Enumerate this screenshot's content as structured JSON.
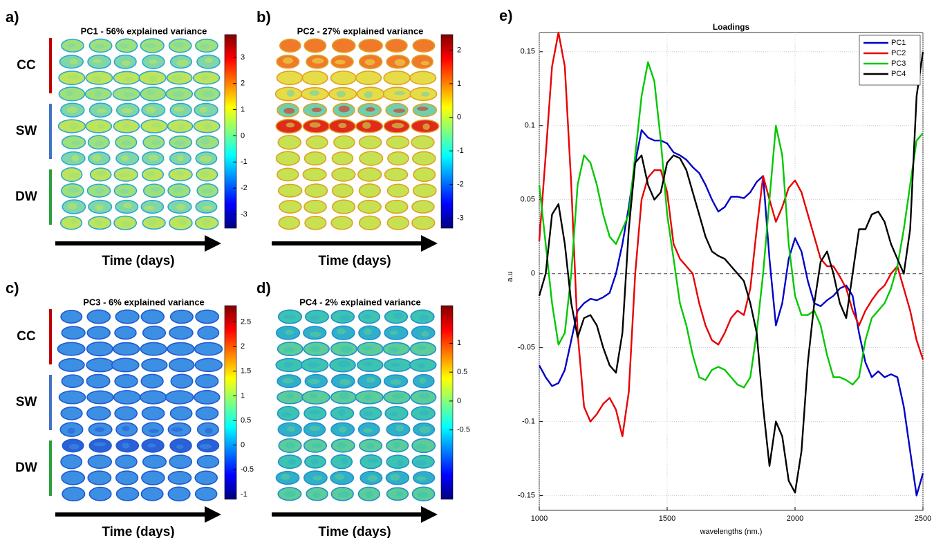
{
  "panels": [
    {
      "label": "a)",
      "title": "PC1 - 56% explained variance",
      "clim": [
        -3.53,
        3.87
      ],
      "cticks": [
        -3,
        -2,
        -1,
        0,
        1,
        2,
        3
      ],
      "groups": [
        "CC",
        "SW",
        "DW"
      ],
      "xlabel": "Time (days)"
    },
    {
      "label": "b)",
      "title": "PC2 - 27% explained variance",
      "clim": [
        -3.3,
        2.46
      ],
      "cticks": [
        -3,
        -2,
        -1,
        0,
        1,
        2
      ],
      "xlabel": "Time (days)"
    },
    {
      "label": "c)",
      "title": "PC3 - 6% explained variance",
      "clim": [
        -1.1,
        2.83
      ],
      "cticks": [
        -1,
        -0.5,
        0,
        0.5,
        1,
        1.5,
        2,
        2.5
      ],
      "groups": [
        "CC",
        "SW",
        "DW"
      ],
      "xlabel": "Time (days)"
    },
    {
      "label": "d)",
      "title": "PC4 - 2% explained variance",
      "clim": [
        -1.7,
        1.65
      ],
      "cticks": [
        -0.5,
        0,
        0.5,
        1
      ],
      "xlabel": "Time (days)"
    }
  ],
  "chart_data": {
    "type": "line",
    "label": "e)",
    "title": "Loadings",
    "xlabel": "wavelengths (nm.)",
    "ylabel": "a.u",
    "x": [
      1000,
      1025,
      1050,
      1075,
      1100,
      1125,
      1150,
      1175,
      1200,
      1225,
      1250,
      1275,
      1300,
      1325,
      1350,
      1375,
      1400,
      1425,
      1450,
      1475,
      1500,
      1525,
      1550,
      1575,
      1600,
      1625,
      1650,
      1675,
      1700,
      1725,
      1750,
      1775,
      1800,
      1825,
      1850,
      1875,
      1900,
      1925,
      1950,
      1975,
      2000,
      2025,
      2050,
      2075,
      2100,
      2125,
      2150,
      2175,
      2200,
      2225,
      2250,
      2275,
      2300,
      2325,
      2350,
      2375,
      2400,
      2425,
      2450,
      2475,
      2500
    ],
    "series": [
      {
        "name": "PC1",
        "color": "#0000c8",
        "values": [
          -0.062,
          -0.07,
          -0.076,
          -0.074,
          -0.065,
          -0.045,
          -0.025,
          -0.02,
          -0.017,
          -0.018,
          -0.016,
          -0.013,
          0.0,
          0.02,
          0.045,
          0.075,
          0.097,
          0.092,
          0.09,
          0.09,
          0.088,
          0.082,
          0.08,
          0.077,
          0.072,
          0.068,
          0.06,
          0.05,
          0.042,
          0.045,
          0.052,
          0.052,
          0.051,
          0.055,
          0.062,
          0.066,
          0.01,
          -0.035,
          -0.02,
          0.01,
          0.024,
          0.015,
          -0.005,
          -0.02,
          -0.022,
          -0.018,
          -0.015,
          -0.01,
          -0.008,
          -0.015,
          -0.04,
          -0.06,
          -0.07,
          -0.066,
          -0.07,
          -0.068,
          -0.07,
          -0.09,
          -0.12,
          -0.15,
          -0.135
        ]
      },
      {
        "name": "PC2",
        "color": "#e80000",
        "values": [
          0.022,
          0.08,
          0.14,
          0.163,
          0.14,
          0.06,
          -0.04,
          -0.09,
          -0.1,
          -0.095,
          -0.088,
          -0.084,
          -0.092,
          -0.11,
          -0.08,
          0.0,
          0.05,
          0.065,
          0.07,
          0.07,
          0.055,
          0.02,
          0.01,
          0.005,
          0.0,
          -0.02,
          -0.035,
          -0.045,
          -0.048,
          -0.04,
          -0.03,
          -0.025,
          -0.028,
          -0.01,
          0.03,
          0.066,
          0.05,
          0.035,
          0.045,
          0.058,
          0.063,
          0.055,
          0.04,
          0.025,
          0.01,
          0.005,
          0.005,
          -0.002,
          -0.01,
          -0.025,
          -0.035,
          -0.025,
          -0.018,
          -0.012,
          -0.008,
          0.0,
          0.005,
          -0.01,
          -0.025,
          -0.045,
          -0.058
        ]
      },
      {
        "name": "PC3",
        "color": "#00c800",
        "values": [
          0.06,
          0.02,
          -0.02,
          -0.048,
          -0.04,
          0.0,
          0.06,
          0.08,
          0.075,
          0.06,
          0.04,
          0.025,
          0.02,
          0.03,
          0.04,
          0.08,
          0.12,
          0.143,
          0.13,
          0.09,
          0.04,
          0.01,
          -0.02,
          -0.035,
          -0.055,
          -0.07,
          -0.072,
          -0.065,
          -0.063,
          -0.065,
          -0.07,
          -0.075,
          -0.077,
          -0.07,
          -0.04,
          0.0,
          0.05,
          0.1,
          0.08,
          0.02,
          -0.015,
          -0.028,
          -0.028,
          -0.025,
          -0.035,
          -0.055,
          -0.07,
          -0.07,
          -0.072,
          -0.075,
          -0.07,
          -0.045,
          -0.03,
          -0.025,
          -0.02,
          -0.01,
          0.005,
          0.03,
          0.06,
          0.09,
          0.095
        ]
      },
      {
        "name": "PC4",
        "color": "#000000",
        "values": [
          -0.015,
          0.0,
          0.04,
          0.047,
          0.02,
          -0.02,
          -0.043,
          -0.03,
          -0.028,
          -0.035,
          -0.05,
          -0.062,
          -0.067,
          -0.04,
          0.03,
          0.075,
          0.08,
          0.06,
          0.05,
          0.055,
          0.075,
          0.08,
          0.078,
          0.07,
          0.055,
          0.04,
          0.025,
          0.015,
          0.012,
          0.01,
          0.005,
          0.0,
          -0.005,
          -0.02,
          -0.04,
          -0.09,
          -0.13,
          -0.1,
          -0.11,
          -0.14,
          -0.148,
          -0.12,
          -0.06,
          -0.02,
          0.008,
          0.015,
          0.0,
          -0.02,
          -0.03,
          0.0,
          0.03,
          0.03,
          0.04,
          0.042,
          0.035,
          0.02,
          0.01,
          0.0,
          0.03,
          0.12,
          0.15
        ]
      }
    ],
    "xlim": [
      1000,
      2500
    ],
    "ylim": [
      -0.16,
      0.163
    ],
    "xticks": [
      1000,
      1500,
      2000,
      2500
    ],
    "yticks": [
      -0.15,
      -0.1,
      -0.05,
      0,
      0.05,
      0.1,
      0.15
    ],
    "grid": true,
    "zero_line": true,
    "legend": "upper right"
  }
}
